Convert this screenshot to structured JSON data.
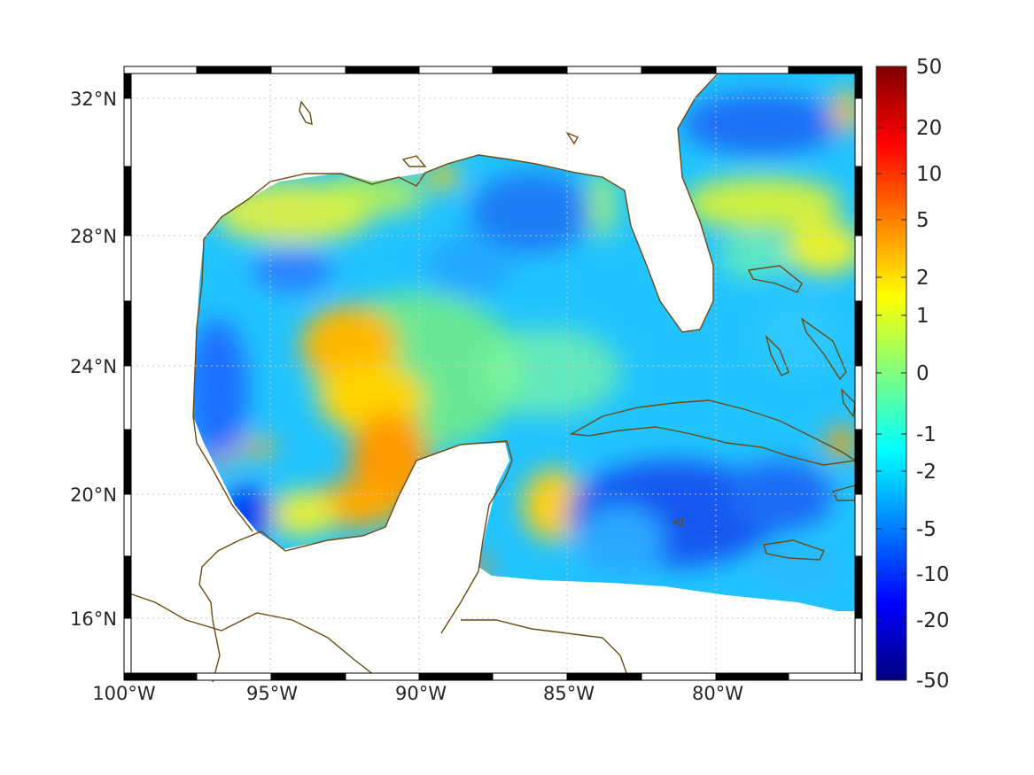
{
  "map": {
    "longitude_ticks": [
      "100°W",
      "95°W",
      "90°W",
      "85°W",
      "80°W"
    ],
    "latitude_ticks": [
      "16°N",
      "20°N",
      "24°N",
      "28°N",
      "32°N"
    ],
    "coastline_color": "#6b4a12",
    "frame_colors": [
      "#000000",
      "#ffffff"
    ],
    "grid": true,
    "grid_style": "dotted",
    "colormap": "jet"
  },
  "colorbar": {
    "ticks": [
      "50",
      "20",
      "10",
      "5",
      "2",
      "1",
      "0",
      "-1",
      "-2",
      "-5",
      "-10",
      "-20",
      "-50"
    ],
    "range": [
      -50,
      50
    ],
    "placement": "right"
  },
  "field": {
    "features": [
      {
        "kind": "warm",
        "region": "central Gulf of Mexico tongue",
        "level": 3
      },
      {
        "kind": "warm",
        "region": "Bay of Campeche",
        "level": 4
      },
      {
        "kind": "warm",
        "region": "east of Yucatan",
        "level": 2
      },
      {
        "kind": "warm",
        "region": "north Atlantic band",
        "level": 1
      },
      {
        "kind": "cool",
        "region": "northeast Gulf",
        "level": -3
      },
      {
        "kind": "cool",
        "region": "Caribbean south of Cuba",
        "level": -4
      },
      {
        "kind": "cool",
        "region": "western Gulf coast",
        "level": -3
      }
    ]
  }
}
